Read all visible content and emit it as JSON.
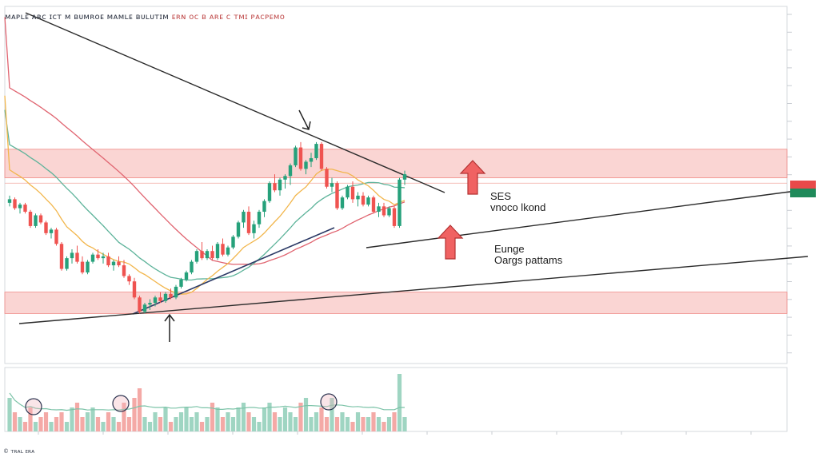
{
  "header": {
    "title": "ᴍᴀᴘʟᴇ ᴀʀᴄ ɪᴄᴛ ᴍ ʙᴜᴍʀᴏᴇ ᴍᴀᴍʟᴇ ʙᴜʟᴜᴛɪᴍ",
    "subtitle": "ᴇʀɴ ᴏᴄ ʙ ᴀʀᴇ ᴄ ᴛᴍɪ ᴘᴀᴄᴘᴇᴍᴏ"
  },
  "annotations": {
    "resistance_line1": "SES",
    "resistance_line2": "vnoco lkond",
    "range_line1": "Eunge",
    "range_line2": "Oargs pattams"
  },
  "price_tags": {
    "current_red": "",
    "current_green": ""
  },
  "footer": {
    "text": "© ᴛʀᴀʟ ᴇʀᴀ"
  },
  "colors": {
    "up": "#26a17b",
    "down": "#ef5350",
    "zone": "#f8c7c4",
    "ma_red": "#e06470",
    "ma_orange": "#f2b64c",
    "ma_teal": "#5db39a",
    "trendline": "#2b2b2b",
    "arrow": "#f06262"
  },
  "chart_data": {
    "type": "candlestick",
    "candles": [
      [
        45,
        47,
        44,
        46
      ],
      [
        46,
        46.5,
        43,
        43.5
      ],
      [
        43.5,
        45,
        42,
        44.5
      ],
      [
        44.5,
        45,
        42,
        42.5
      ],
      [
        42.5,
        43,
        38,
        38.5
      ],
      [
        38.5,
        42,
        38,
        41.5
      ],
      [
        41.5,
        42,
        39,
        39.5
      ],
      [
        39.5,
        40,
        36,
        36.5
      ],
      [
        36.5,
        38,
        35,
        37.5
      ],
      [
        37.5,
        38,
        33,
        33.5
      ],
      [
        33.5,
        34,
        26,
        26.5
      ],
      [
        26.5,
        30,
        26,
        29.5
      ],
      [
        29.5,
        32,
        28,
        31
      ],
      [
        31,
        33,
        28,
        28.5
      ],
      [
        28.5,
        30,
        25,
        25.5
      ],
      [
        25.5,
        29,
        25,
        28.5
      ],
      [
        28.5,
        31,
        28,
        30.5
      ],
      [
        30.5,
        32,
        29,
        29.5
      ],
      [
        29.5,
        31,
        28,
        30
      ],
      [
        30,
        31,
        27,
        27.5
      ],
      [
        27.5,
        29,
        26,
        28.5
      ],
      [
        28.5,
        30,
        27,
        27.5
      ],
      [
        27.5,
        29,
        24,
        24.5
      ],
      [
        24.5,
        25,
        22,
        23
      ],
      [
        23,
        24,
        18,
        18.5
      ],
      [
        18.5,
        19,
        14,
        14.5
      ],
      [
        14.5,
        17,
        14,
        16.5
      ],
      [
        16.5,
        18,
        15,
        17
      ],
      [
        17,
        19,
        16,
        18.5
      ],
      [
        18.5,
        20,
        17,
        17.5
      ],
      [
        17.5,
        20,
        17,
        19.5
      ],
      [
        19.5,
        21,
        18,
        18.5
      ],
      [
        18.5,
        22,
        18,
        21.5
      ],
      [
        21.5,
        24,
        21,
        23.5
      ],
      [
        23.5,
        26,
        23,
        25.5
      ],
      [
        25.5,
        29,
        25,
        28.5
      ],
      [
        28.5,
        32,
        28,
        31.5
      ],
      [
        31.5,
        34,
        29,
        29.5
      ],
      [
        29.5,
        32,
        29,
        31.5
      ],
      [
        31.5,
        33,
        29,
        29.5
      ],
      [
        29.5,
        34,
        29,
        33.5
      ],
      [
        33.5,
        35,
        30,
        30.5
      ],
      [
        30.5,
        33,
        30,
        32.5
      ],
      [
        32.5,
        36,
        32,
        35.5
      ],
      [
        35.5,
        40,
        35,
        39.5
      ],
      [
        39.5,
        43,
        38,
        42.5
      ],
      [
        42.5,
        44,
        36,
        36.5
      ],
      [
        36.5,
        40,
        35,
        39
      ],
      [
        39,
        43,
        38,
        42.5
      ],
      [
        42.5,
        46,
        41,
        45.5
      ],
      [
        45.5,
        51,
        45,
        50.5
      ],
      [
        50.5,
        53,
        48,
        48.5
      ],
      [
        48.5,
        52,
        47,
        51.5
      ],
      [
        51.5,
        53,
        49,
        52.5
      ],
      [
        52.5,
        56,
        50,
        55.5
      ],
      [
        55.5,
        61,
        55,
        60.5
      ],
      [
        60.5,
        62,
        54,
        54.5
      ],
      [
        54.5,
        57,
        53,
        56.5
      ],
      [
        56.5,
        59,
        55,
        57.5
      ],
      [
        57.5,
        62,
        57,
        61.5
      ],
      [
        61.5,
        62,
        54,
        54.5
      ],
      [
        54.5,
        55,
        49,
        49.5
      ],
      [
        49.5,
        52,
        48,
        50.5
      ],
      [
        50.5,
        51,
        43,
        43.5
      ],
      [
        43.5,
        47,
        43,
        46.5
      ],
      [
        46.5,
        50,
        46,
        49.5
      ],
      [
        49.5,
        51,
        45,
        46
      ],
      [
        46,
        48,
        44,
        47
      ],
      [
        47,
        48,
        44,
        44.5
      ],
      [
        44.5,
        47,
        44,
        46.5
      ],
      [
        46.5,
        47,
        42,
        42.5
      ],
      [
        42.5,
        45,
        41,
        44
      ],
      [
        44,
        45,
        41,
        41.5
      ],
      [
        41.5,
        44,
        41,
        43.5
      ],
      [
        43.5,
        44,
        38,
        38.5
      ],
      [
        38.5,
        52,
        38,
        51.5
      ],
      [
        51.5,
        54,
        50,
        53
      ]
    ],
    "volumes": [
      7,
      4,
      3,
      2,
      5,
      2,
      3,
      4,
      2,
      3,
      4,
      2,
      5,
      6,
      3,
      4,
      5,
      3,
      2,
      4,
      3,
      2,
      6,
      3,
      7,
      9,
      3,
      2,
      4,
      3,
      5,
      2,
      3,
      4,
      5,
      3,
      4,
      2,
      3,
      6,
      5,
      3,
      4,
      3,
      5,
      6,
      4,
      3,
      2,
      5,
      6,
      4,
      3,
      5,
      4,
      3,
      6,
      7,
      3,
      4,
      5,
      3,
      7,
      3,
      4,
      3,
      2,
      4,
      3,
      3,
      4,
      3,
      2,
      3,
      4,
      12,
      3
    ],
    "zones": [
      [
        52,
        60
      ],
      [
        14,
        20
      ]
    ],
    "ylim": [
      0,
      100
    ]
  }
}
